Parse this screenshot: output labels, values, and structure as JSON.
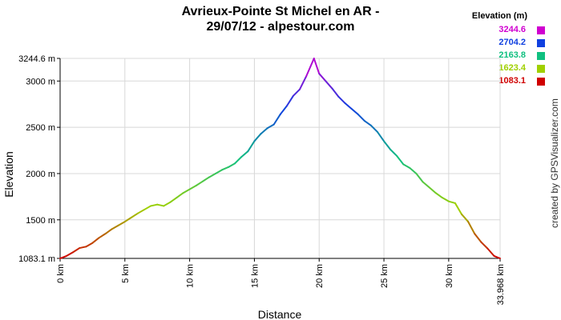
{
  "title_line1": "Avrieux-Pointe St Michel en AR -",
  "title_line2": "29/07/12 - alpestour.com",
  "credit": "created by GPSVisualizer.com",
  "legend": {
    "title": "Elevation (m)",
    "items": [
      {
        "label": "3244.6",
        "color": "#d000d0"
      },
      {
        "label": "2704.2",
        "color": "#1040e0"
      },
      {
        "label": "2163.8",
        "color": "#10c080"
      },
      {
        "label": "1623.4",
        "color": "#a0d000"
      },
      {
        "label": "1083.1",
        "color": "#d00000"
      }
    ]
  },
  "chart_data": {
    "type": "line",
    "xlabel": "Distance",
    "ylabel": "Elevation",
    "xlim": [
      0,
      33.968
    ],
    "ylim": [
      1083.1,
      3244.6
    ],
    "x_ticks": [
      {
        "v": 0,
        "label": "0 km"
      },
      {
        "v": 5,
        "label": "5 km"
      },
      {
        "v": 10,
        "label": "10 km"
      },
      {
        "v": 15,
        "label": "15 km"
      },
      {
        "v": 20,
        "label": "20 km"
      },
      {
        "v": 25,
        "label": "25 km"
      },
      {
        "v": 30,
        "label": "30 km"
      },
      {
        "v": 33.968,
        "label": "33.968 km"
      }
    ],
    "y_ticks": [
      {
        "v": 1083.1,
        "label": "1083.1 m"
      },
      {
        "v": 1500,
        "label": "1500 m"
      },
      {
        "v": 2000,
        "label": "2000 m"
      },
      {
        "v": 2500,
        "label": "2500 m"
      },
      {
        "v": 3000,
        "label": "3000 m"
      },
      {
        "v": 3244.6,
        "label": "3244.6 m"
      }
    ],
    "color_stops": [
      {
        "elev": 1083.1,
        "color": "#d00000"
      },
      {
        "elev": 1623.4,
        "color": "#a0d000"
      },
      {
        "elev": 2163.8,
        "color": "#10c080"
      },
      {
        "elev": 2704.2,
        "color": "#1040e0"
      },
      {
        "elev": 3244.6,
        "color": "#d000d0"
      }
    ],
    "grid": true,
    "series": [
      {
        "x": [
          0,
          0.5,
          1,
          1.5,
          2,
          2.5,
          3,
          3.5,
          4,
          4.5,
          5,
          5.5,
          6,
          6.5,
          7,
          7.5,
          8,
          8.5,
          9,
          9.5,
          10,
          10.5,
          11,
          11.5,
          12,
          12.5,
          13,
          13.5,
          14,
          14.5,
          15,
          15.5,
          16,
          16.5,
          17,
          17.5,
          18,
          18.5,
          19,
          19.6,
          20,
          20.5,
          21,
          21.5,
          22,
          22.5,
          23,
          23.5,
          24,
          24.5,
          25,
          25.5,
          26,
          26.5,
          27,
          27.5,
          28,
          28.5,
          29,
          29.5,
          30,
          30.5,
          31,
          31.5,
          32,
          32.5,
          33,
          33.5,
          33.968
        ],
        "y": [
          1083,
          1110,
          1150,
          1195,
          1210,
          1250,
          1305,
          1350,
          1400,
          1440,
          1480,
          1525,
          1570,
          1610,
          1650,
          1665,
          1650,
          1690,
          1740,
          1790,
          1830,
          1870,
          1915,
          1960,
          2000,
          2040,
          2070,
          2110,
          2180,
          2240,
          2350,
          2430,
          2490,
          2530,
          2640,
          2730,
          2840,
          2910,
          3050,
          3244,
          3080,
          3000,
          2920,
          2830,
          2760,
          2700,
          2640,
          2570,
          2520,
          2450,
          2350,
          2260,
          2190,
          2100,
          2060,
          2000,
          1910,
          1850,
          1790,
          1740,
          1700,
          1680,
          1560,
          1480,
          1350,
          1260,
          1190,
          1110,
          1083
        ]
      }
    ]
  }
}
